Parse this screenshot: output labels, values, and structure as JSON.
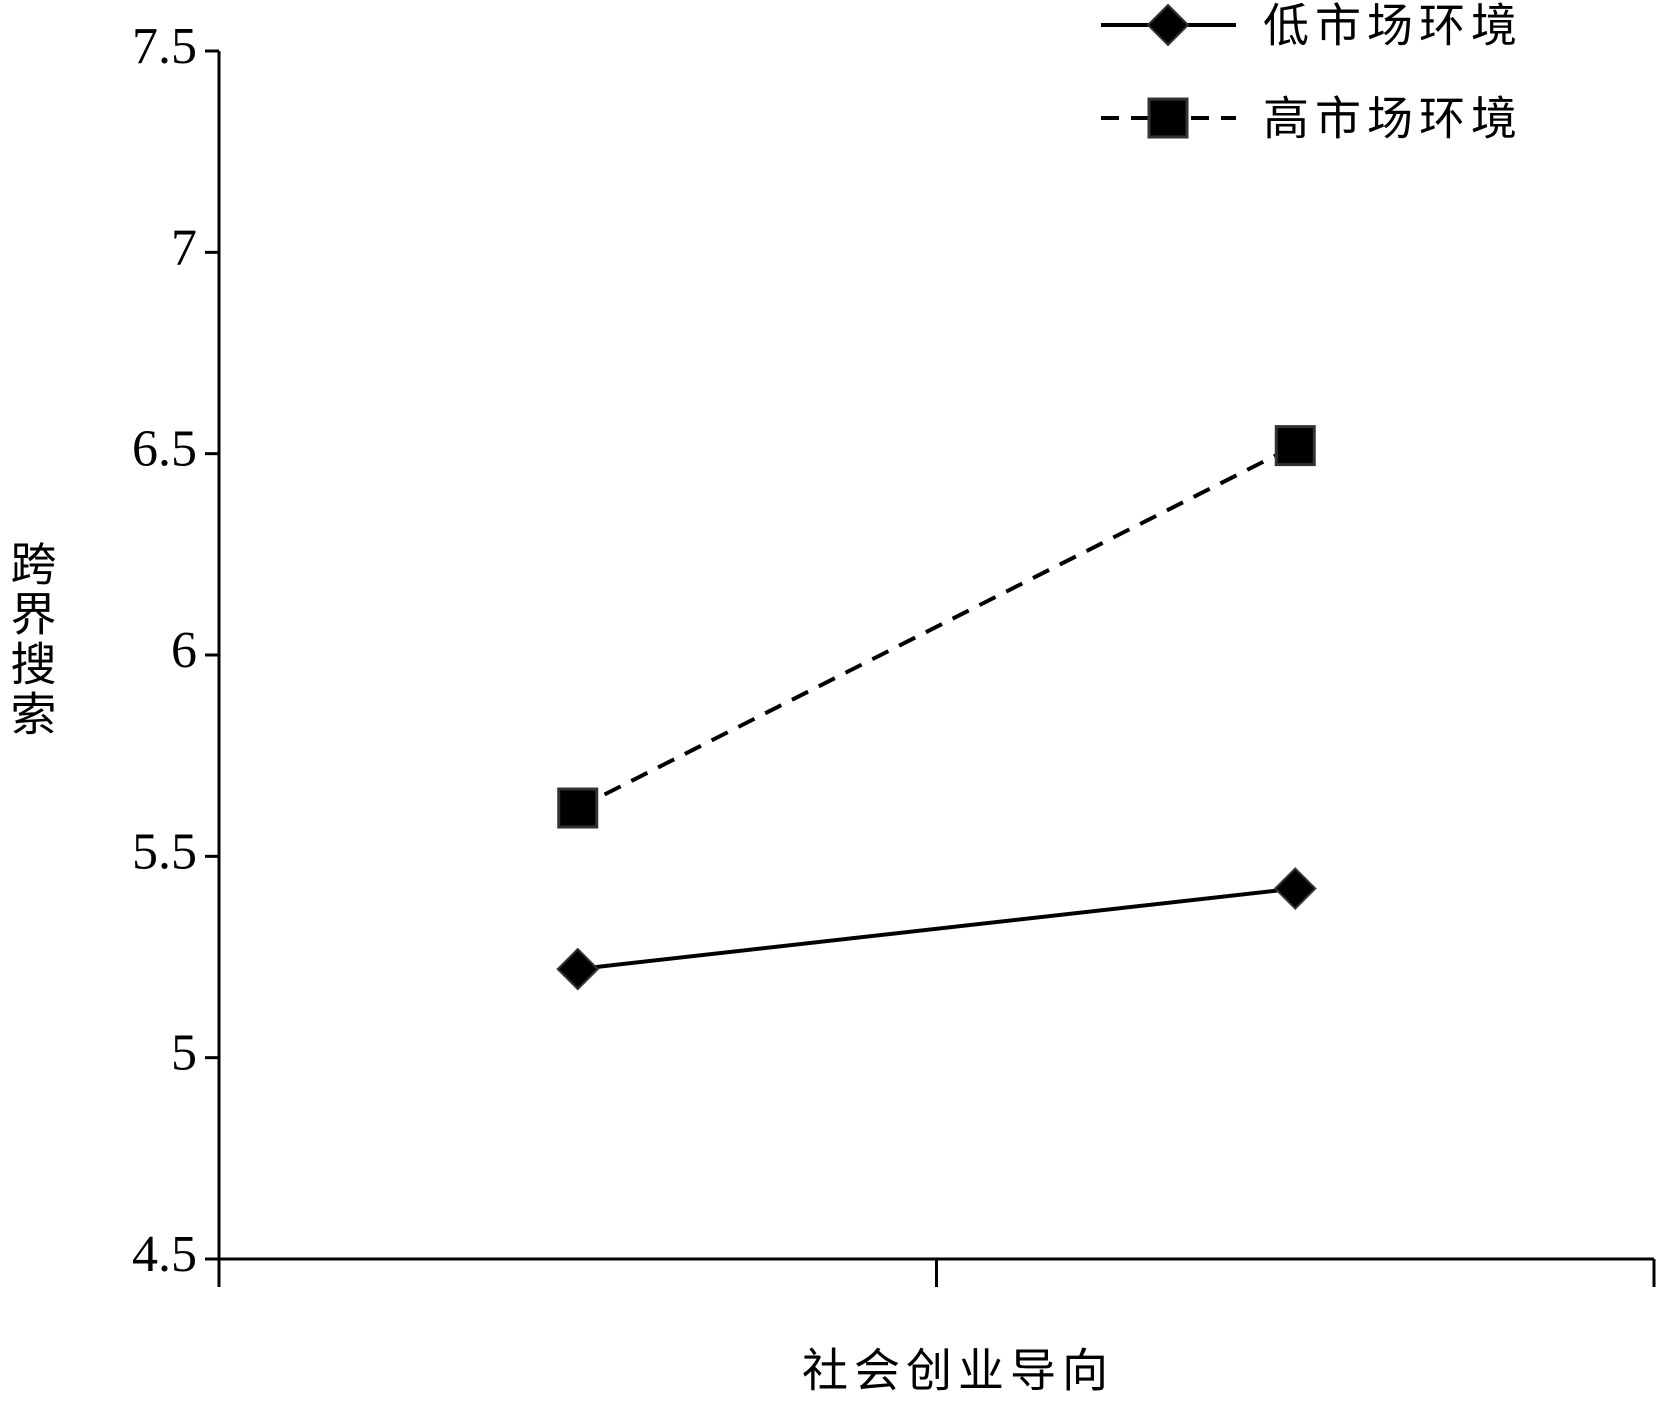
{
  "chart_data": {
    "type": "line",
    "x_label": "社会创业导向",
    "y_label": "跨界搜索",
    "categories": [
      null,
      null
    ],
    "series": [
      {
        "name": "低市场环境",
        "color": "#000000",
        "line_style": "solid",
        "marker": "diamond",
        "values": [
          5.22,
          5.42
        ]
      },
      {
        "name": "高市场环境",
        "color": "#000000",
        "line_style": "dashed",
        "marker": "square",
        "values": [
          5.62,
          6.52
        ]
      }
    ],
    "ylim": [
      4.5,
      7.5
    ],
    "yticks": [
      4.5,
      5,
      5.5,
      6,
      6.5,
      7,
      7.5
    ],
    "grid": false,
    "legend": "top-right"
  }
}
